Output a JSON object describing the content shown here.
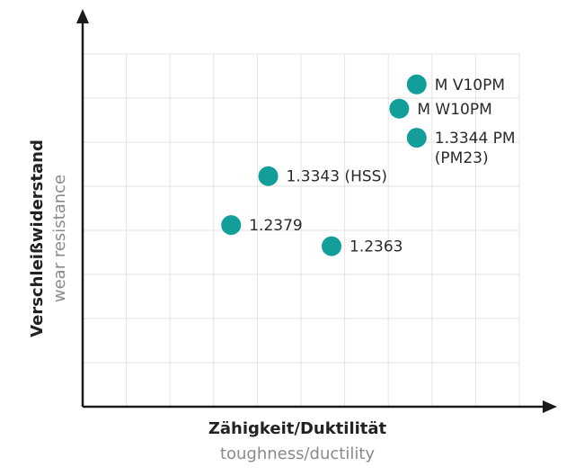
{
  "chart_data": {
    "type": "scatter",
    "xlabel": "Zähigkeit/Duktilität",
    "xlabel_sub": "toughness/ductility",
    "ylabel": "Verschleißwiderstand",
    "ylabel_sub": "wear resistance",
    "grid": true,
    "xlim": [
      0,
      10
    ],
    "ylim": [
      0,
      8
    ],
    "marker_color": "#139e9a",
    "grid_color": "#e3e3e3",
    "axis_color": "#1a1a1a",
    "points": [
      {
        "name": "M V10PM",
        "label": [
          "M V10PM"
        ],
        "x": 7.65,
        "y": 7.31
      },
      {
        "name": "M W10PM",
        "label": [
          "M W10PM"
        ],
        "x": 7.25,
        "y": 6.76
      },
      {
        "name": "1.3344 PM",
        "label": [
          "1.3344 PM",
          "(PM23)"
        ],
        "x": 7.65,
        "y": 6.1
      },
      {
        "name": "1.3343 (HSS)",
        "label": [
          "1.3343 (HSS)"
        ],
        "x": 4.25,
        "y": 5.23
      },
      {
        "name": "1.2379",
        "label": [
          "1.2379"
        ],
        "x": 3.4,
        "y": 4.12
      },
      {
        "name": "1.2363",
        "label": [
          "1.2363"
        ],
        "x": 5.7,
        "y": 3.64
      }
    ]
  }
}
